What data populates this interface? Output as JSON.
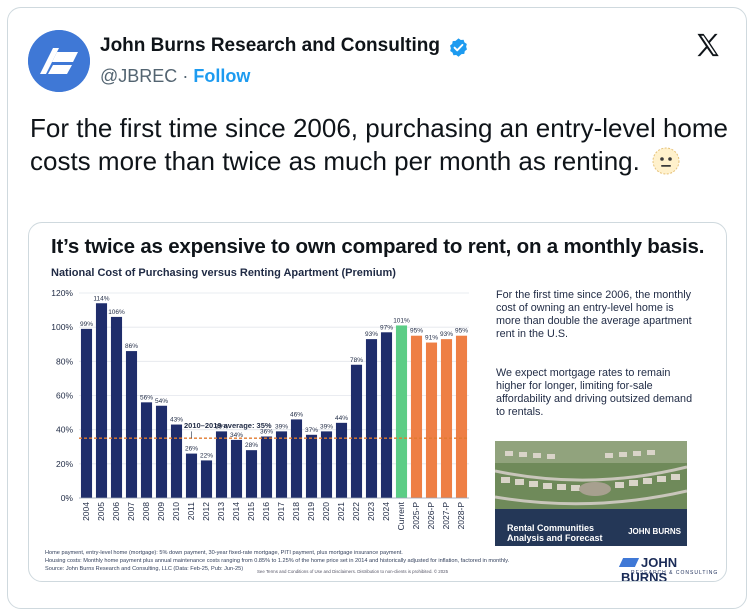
{
  "tweet": {
    "author_name": "John Burns Research and Consulting",
    "handle": "@JBREC",
    "separator": "·",
    "follow_label": "Follow",
    "text": "For the first time since 2006, purchasing an entry-level home costs more than twice as much per month as renting."
  },
  "icons": [
    "avatar-logo",
    "verified-badge-icon",
    "x-logo-icon",
    "neutral-face-emoji"
  ],
  "colors": {
    "bar_navy": "#1f2d6b",
    "bar_green": "#5ccd86",
    "bar_orange": "#ee7f45",
    "avg_line": "#e07a2f",
    "verified": "#1d9bf0",
    "follow": "#1d9bf0"
  },
  "infographic": {
    "title": "It’s twice as expensive to own compared to rent, on a monthly basis.",
    "subtitle": "National Cost of Purchasing versus Renting Apartment (Premium)",
    "side_para1": "For the first time since 2006, the monthly cost of owning an entry-level home is more than double the average apartment rent in the U.S.",
    "side_para2": "We expect mortgage rates to remain higher for longer, limiting for-sale affordability and driving outsized demand to rentals.",
    "photo_caption_line1": "Rental Communities",
    "photo_caption_line2": "Analysis and Forecast",
    "photo_logo": "JOHN BURNS",
    "note1": "Home payment, entry-level home (mortgage): 5% down payment, 30-year fixed-rate mortgage, PITI payment, plus mortgage insurance payment.",
    "note2": "Housing costs: Monthly home payment plus annual maintenance costs ranging from 0.85% to 1.25% of the home price set in 2014 and historically adjusted for inflation, factored in monthly.",
    "note3": "Source: John Burns Research and Consulting, LLC (Data: Feb-25, Pub: Jun-25)",
    "terms": "See Terms and Conditions of Use and Disclaimers. Distribution to non-clients is prohibited. © 2025",
    "logo_main": "JOHN BURNS",
    "logo_sub": "RESEARCH & CONSULTING"
  },
  "chart_data": {
    "type": "bar",
    "title": "National Cost of Purchasing versus Renting Apartment (Premium)",
    "categories": [
      "2004",
      "2005",
      "2006",
      "2007",
      "2008",
      "2009",
      "2010",
      "2011",
      "2012",
      "2013",
      "2014",
      "2015",
      "2016",
      "2017",
      "2018",
      "2019",
      "2020",
      "2021",
      "2022",
      "2023",
      "2024",
      "Current",
      "2025-P",
      "2026-P",
      "2027-P",
      "2028-P"
    ],
    "values": [
      99,
      114,
      106,
      86,
      56,
      54,
      43,
      26,
      22,
      39,
      34,
      28,
      36,
      39,
      46,
      37,
      39,
      44,
      78,
      93,
      97,
      101,
      95,
      91,
      93,
      95
    ],
    "value_labels": [
      "99%",
      "114%",
      "106%",
      "86%",
      "56%",
      "54%",
      "43%",
      "26%",
      "22%",
      "39%",
      "34%",
      "28%",
      "36%",
      "39%",
      "46%",
      "37%",
      "39%",
      "44%",
      "78%",
      "93%",
      "97%",
      "101%",
      "95%",
      "91%",
      "93%",
      "95%"
    ],
    "bar_groups": {
      "historical": "navy",
      "Current": "green",
      "projected": "orange"
    },
    "y_ticks": [
      "0%",
      "20%",
      "40%",
      "60%",
      "80%",
      "100%",
      "120%"
    ],
    "ylim": [
      0,
      120
    ],
    "grid": true,
    "reference_line": {
      "value": 35,
      "label": "2010–2019 average: 35%"
    }
  }
}
